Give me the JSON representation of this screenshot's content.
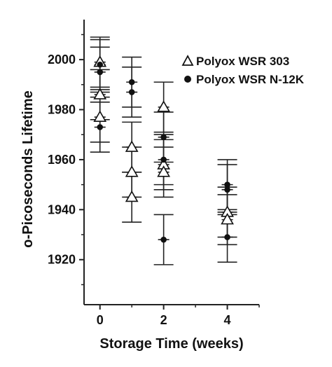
{
  "chart_data": {
    "type": "scatter",
    "xlabel": "Storage Time (weeks)",
    "ylabel": "o-Picoseconds Lifetime",
    "xlim": [
      -0.5,
      5.0
    ],
    "ylim": [
      1902,
      2016
    ],
    "x_ticks": [
      0,
      2,
      4
    ],
    "y_ticks": [
      1920,
      1940,
      1960,
      1980,
      2000
    ],
    "grid": false,
    "legend_position": "top-right",
    "series": [
      {
        "name": "Polyox WSR 303",
        "marker": "open-triangle",
        "color": "#111111",
        "points": [
          {
            "x": 0,
            "y": 1999,
            "err": 10
          },
          {
            "x": 0,
            "y": 1986,
            "err": 10
          },
          {
            "x": 0,
            "y": 1977,
            "err": 10
          },
          {
            "x": 1,
            "y": 1965,
            "err": 10
          },
          {
            "x": 1,
            "y": 1955,
            "err": 10
          },
          {
            "x": 1,
            "y": 1945,
            "err": 10
          },
          {
            "x": 2,
            "y": 1981,
            "err": 10
          },
          {
            "x": 2,
            "y": 1958,
            "err": 10
          },
          {
            "x": 2,
            "y": 1955,
            "err": 10
          },
          {
            "x": 4,
            "y": 1939,
            "err": 10
          },
          {
            "x": 4,
            "y": 1936,
            "err": 10
          }
        ]
      },
      {
        "name": "Polyox WSR N-12K",
        "marker": "filled-circle",
        "color": "#111111",
        "points": [
          {
            "x": 0,
            "y": 1998,
            "err": 10
          },
          {
            "x": 0,
            "y": 1995,
            "err": 10
          },
          {
            "x": 0,
            "y": 1973,
            "err": 10
          },
          {
            "x": 1,
            "y": 1991,
            "err": 10
          },
          {
            "x": 1,
            "y": 1987,
            "err": 10
          },
          {
            "x": 2,
            "y": 1969,
            "err": 10
          },
          {
            "x": 2,
            "y": 1960,
            "err": 10
          },
          {
            "x": 2,
            "y": 1928,
            "err": 10
          },
          {
            "x": 4,
            "y": 1950,
            "err": 10
          },
          {
            "x": 4,
            "y": 1948,
            "err": 10
          },
          {
            "x": 4,
            "y": 1929,
            "err": 10
          }
        ]
      }
    ]
  }
}
